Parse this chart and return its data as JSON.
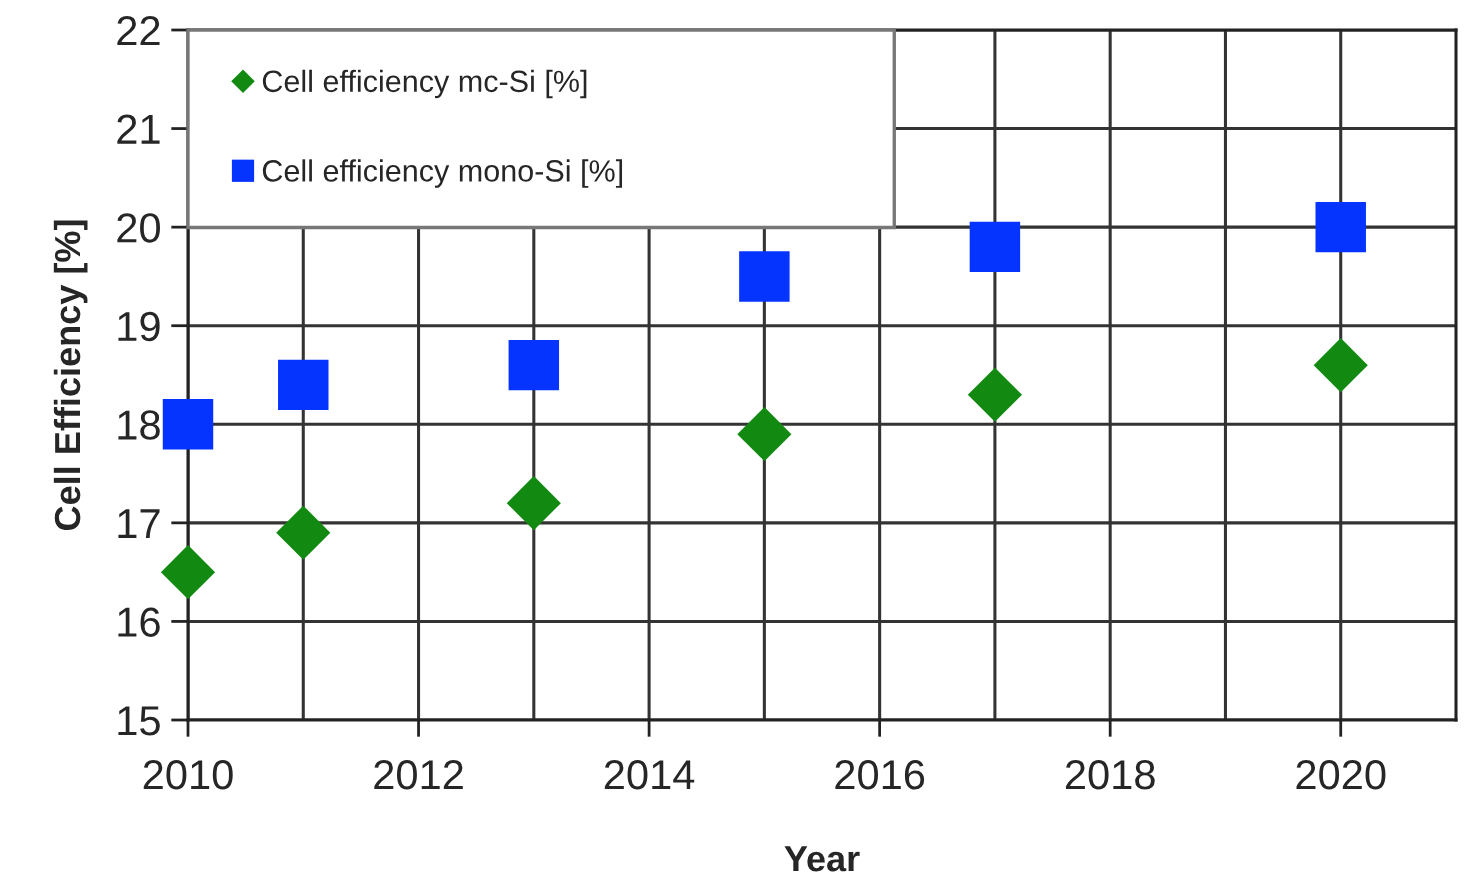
{
  "chart_data": {
    "type": "scatter",
    "xlabel": "Year",
    "ylabel": "Cell Efficiency [%]",
    "series": [
      {
        "name": "Cell efficiency mc-Si [%]",
        "color": "#128a12",
        "marker": "diamond",
        "x": [
          2010,
          2011,
          2013,
          2015,
          2017,
          2020
        ],
        "values": [
          16.5,
          16.9,
          17.2,
          17.9,
          18.3,
          18.6
        ]
      },
      {
        "name": "Cell efficiency mono-Si [%]",
        "color": "#0533ff",
        "marker": "square",
        "x": [
          2010,
          2011,
          2013,
          2015,
          2017,
          2020
        ],
        "values": [
          18.0,
          18.4,
          18.6,
          19.5,
          19.8,
          20.0
        ]
      }
    ],
    "xlim": [
      2010,
      2021
    ],
    "xticks": [
      2010,
      {
        "value": 2011,
        "label": null
      },
      2012,
      {
        "value": 2013,
        "label": null
      },
      2014,
      {
        "value": 2015,
        "label": null
      },
      2016,
      {
        "value": 2017,
        "label": null
      },
      2018,
      {
        "value": 2019,
        "label": null
      },
      2020
    ],
    "ylim": [
      15,
      22
    ],
    "yticks": [
      15,
      16,
      17,
      18,
      19,
      20,
      21,
      22
    ],
    "grid": true,
    "legend": "top left"
  }
}
